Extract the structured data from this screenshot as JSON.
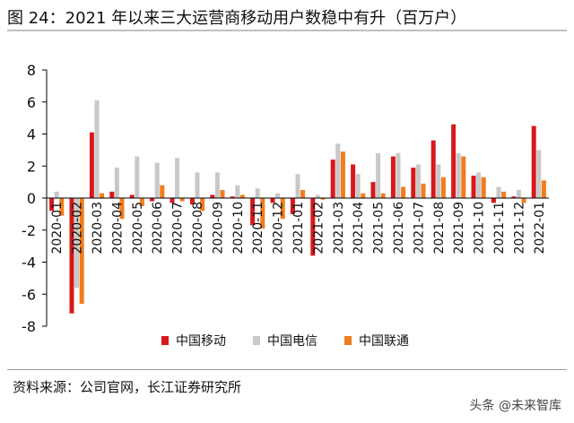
{
  "title": "图 24：2021 年以来三大运营商移动用户数稳中有升（百万户）",
  "source": "资料来源：公司官网，长江证券研究所",
  "watermark": "头条 @未来智库",
  "colors": {
    "china_mobile": "#d7191c",
    "china_telecom": "#c8c8c8",
    "china_unicom": "#f07d1e"
  },
  "chart_data": {
    "type": "bar",
    "categories": [
      "2020-01",
      "2020-02",
      "2020-03",
      "2020-04",
      "2020-05",
      "2020-06",
      "2020-07",
      "2020-08",
      "2020-09",
      "2020-10",
      "2020-11",
      "2020-12",
      "2021-01",
      "2021-02",
      "2021-03",
      "2021-04",
      "2021-05",
      "2021-06",
      "2021-07",
      "2021-08",
      "2021-09",
      "2021-10",
      "2021-11",
      "2021-12",
      "2022-01"
    ],
    "series": [
      {
        "name": "中国移动",
        "color_key": "china_mobile",
        "values": [
          -0.8,
          -7.2,
          4.1,
          0.4,
          0.2,
          -0.2,
          -0.3,
          -0.4,
          0.2,
          0.1,
          -1.7,
          -0.3,
          -1.0,
          -3.6,
          2.4,
          2.1,
          1.0,
          2.6,
          1.9,
          3.6,
          4.6,
          1.4,
          -0.3,
          0.1,
          4.5
        ]
      },
      {
        "name": "中国电信",
        "color_key": "china_telecom",
        "values": [
          0.4,
          -5.6,
          6.1,
          1.9,
          2.6,
          2.2,
          2.5,
          1.6,
          1.6,
          0.8,
          0.6,
          0.3,
          1.5,
          0.2,
          3.4,
          1.5,
          2.8,
          2.8,
          2.1,
          2.1,
          2.8,
          1.6,
          0.7,
          0.5,
          3.0
        ]
      },
      {
        "name": "中国联通",
        "color_key": "china_unicom",
        "values": [
          -1.1,
          -6.6,
          0.3,
          -1.3,
          -0.5,
          0.8,
          -0.2,
          -0.8,
          0.5,
          0.2,
          -1.9,
          -1.3,
          0.5,
          -0.1,
          2.9,
          0.3,
          0.3,
          0.7,
          0.9,
          1.3,
          2.6,
          1.3,
          0.4,
          -0.3,
          1.1
        ]
      }
    ],
    "ylim": [
      -8,
      8
    ],
    "yticks": [
      -8,
      -6,
      -4,
      -2,
      0,
      2,
      4,
      6,
      8
    ],
    "xlabel": "",
    "ylabel": "",
    "grid": false,
    "legend_position": "bottom"
  }
}
